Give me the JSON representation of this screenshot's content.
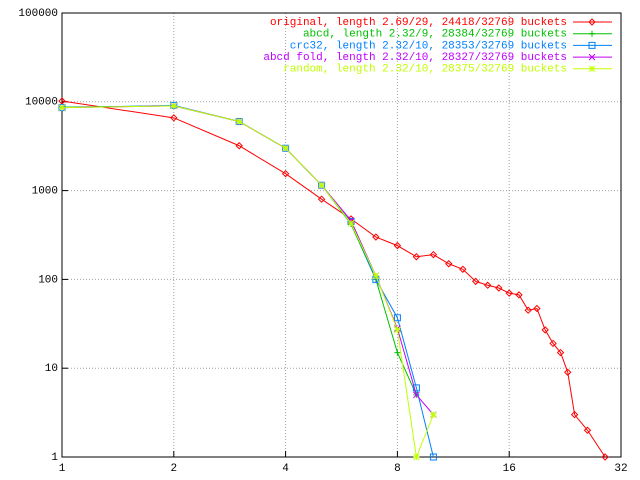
{
  "chart_data": {
    "type": "line",
    "x": [
      1,
      2,
      3,
      4,
      5,
      6,
      7,
      8,
      9,
      10,
      11,
      12,
      13,
      14,
      15,
      16,
      17,
      18,
      19,
      20,
      21,
      22,
      23,
      24,
      26,
      29
    ],
    "series": [
      {
        "name": "original, length 2.69/29, 24418/32769 buckets",
        "color": "#ff0000",
        "marker": "diamond",
        "values": [
          10200,
          6600,
          3200,
          1550,
          800,
          480,
          300,
          240,
          180,
          190,
          150,
          130,
          95,
          86,
          80,
          70,
          67,
          45,
          47,
          27,
          19,
          15,
          9,
          3,
          2,
          1
        ]
      },
      {
        "name": "abcd, length 2.32/9, 28384/32769 buckets",
        "color": "#00c000",
        "marker": "plus",
        "values": [
          8700,
          9000,
          6000,
          3000,
          1150,
          420,
          100,
          15,
          5,
          null,
          null,
          null,
          null,
          null,
          null,
          null,
          null,
          null,
          null,
          null,
          null,
          null,
          null,
          null,
          null,
          null
        ]
      },
      {
        "name": "crc32, length 2.32/10, 28353/32769 buckets",
        "color": "#0080ff",
        "marker": "square",
        "values": [
          8600,
          9100,
          6000,
          3000,
          1150,
          450,
          100,
          37,
          6,
          1,
          null,
          null,
          null,
          null,
          null,
          null,
          null,
          null,
          null,
          null,
          null,
          null,
          null,
          null,
          null,
          null
        ]
      },
      {
        "name": "abcd fold, length 2.32/10, 28327/32769 buckets",
        "color": "#c000ff",
        "marker": "cross",
        "values": [
          8600,
          9000,
          6000,
          3000,
          1150,
          460,
          110,
          28,
          5,
          3,
          null,
          null,
          null,
          null,
          null,
          null,
          null,
          null,
          null,
          null,
          null,
          null,
          null,
          null,
          null,
          null
        ]
      },
      {
        "name": "random, length 2.32/10, 28375/32769 buckets",
        "color": "#c0ff00",
        "marker": "star",
        "values": [
          8600,
          9000,
          6000,
          3000,
          1150,
          430,
          110,
          27,
          1,
          3,
          null,
          null,
          null,
          null,
          null,
          null,
          null,
          null,
          null,
          null,
          null,
          null,
          null,
          null,
          null,
          null
        ]
      }
    ],
    "xlim": [
      1,
      32
    ],
    "xticks": [
      1,
      2,
      4,
      8,
      16,
      32
    ],
    "ylim": [
      1,
      100000
    ],
    "yticks": [
      1,
      10,
      100,
      1000,
      10000,
      100000
    ],
    "xlog": true,
    "ylog": true,
    "grid": true,
    "legend": "top-right"
  }
}
